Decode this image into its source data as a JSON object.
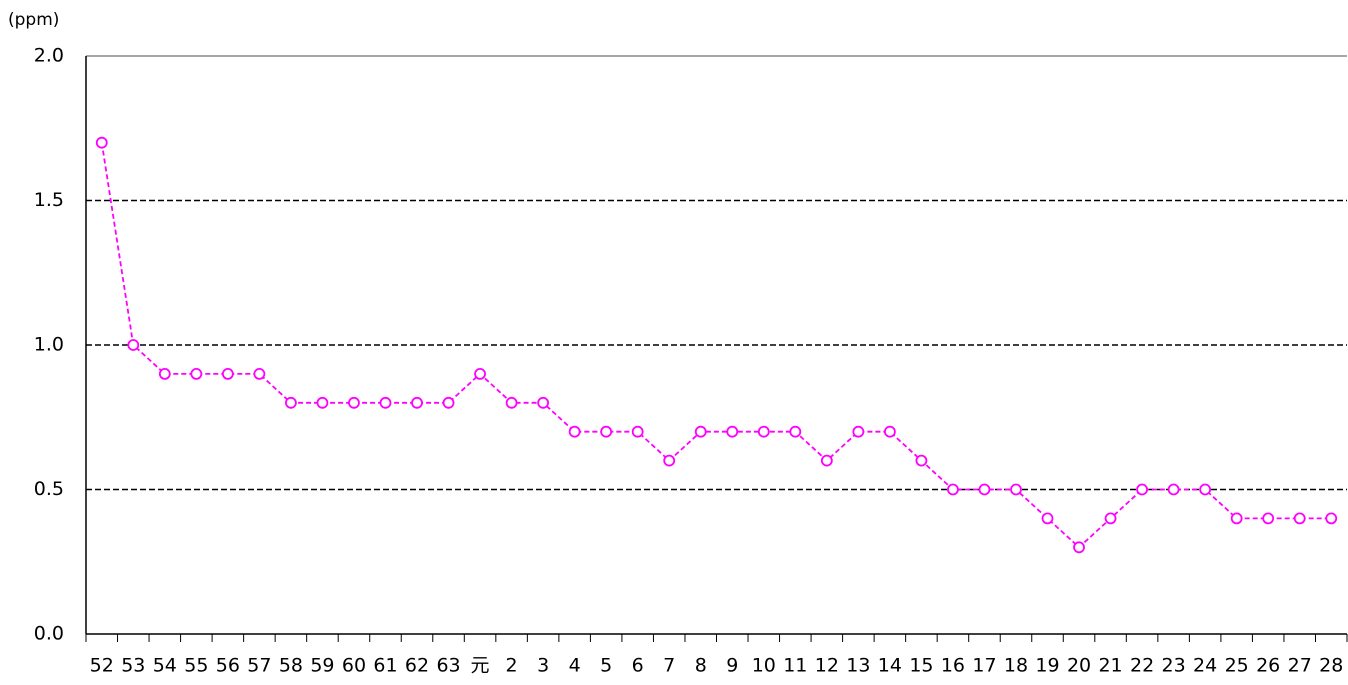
{
  "chart_data": {
    "type": "line",
    "y_label": "(ppm)",
    "categories": [
      "52",
      "53",
      "54",
      "55",
      "56",
      "57",
      "58",
      "59",
      "60",
      "61",
      "62",
      "63",
      "元",
      "2",
      "3",
      "4",
      "5",
      "6",
      "7",
      "8",
      "9",
      "10",
      "11",
      "12",
      "13",
      "14",
      "15",
      "16",
      "17",
      "18",
      "19",
      "20",
      "21",
      "22",
      "23",
      "24",
      "25",
      "26",
      "27",
      "28"
    ],
    "series": [
      {
        "color": "#ff00ff",
        "values": [
          1.7,
          1.0,
          0.9,
          0.9,
          0.9,
          0.9,
          0.8,
          0.8,
          0.8,
          0.8,
          0.8,
          0.8,
          0.9,
          0.8,
          0.8,
          0.7,
          0.7,
          0.7,
          0.6,
          0.7,
          0.7,
          0.7,
          0.7,
          0.6,
          0.7,
          0.7,
          0.6,
          0.5,
          0.5,
          0.5,
          0.4,
          0.3,
          0.4,
          0.5,
          0.5,
          0.5,
          0.4,
          0.4,
          0.4,
          0.4
        ]
      }
    ],
    "ylim": [
      0,
      2
    ],
    "yticks": [
      {
        "value": 0,
        "label": "0.0"
      },
      {
        "value": 0.5,
        "label": "0.5"
      },
      {
        "value": 1,
        "label": "1.0"
      },
      {
        "value": 1.5,
        "label": "1.5"
      },
      {
        "value": 2,
        "label": "2.0"
      }
    ],
    "grid": true
  }
}
